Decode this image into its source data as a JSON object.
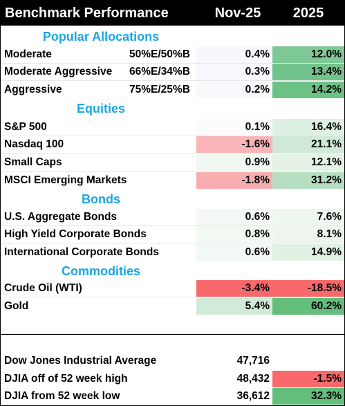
{
  "header": {
    "title": "Benchmark Performance",
    "col1": "Nov-25",
    "col2": "2025"
  },
  "sections": {
    "popular": "Popular Allocations",
    "equities": "Equities",
    "bonds": "Bonds",
    "commodities": "Commodities"
  },
  "rows": {
    "moderate": {
      "name": "Moderate",
      "alloc": "50%E/50%B",
      "nov": "0.4%",
      "ytd": "12.0%",
      "nov_bg": "#f7f8fc",
      "ytd_bg": "#7ec896"
    },
    "mod_agg": {
      "name": "Moderate Aggressive",
      "alloc": "66%E/34%B",
      "nov": "0.3%",
      "ytd": "13.4%",
      "nov_bg": "#f8f9fd",
      "ytd_bg": "#72c38b"
    },
    "aggressive": {
      "name": "Aggressive",
      "alloc": "75%E/25%B",
      "nov": "0.2%",
      "ytd": "14.2%",
      "nov_bg": "#f9f9fd",
      "ytd_bg": "#6cc185"
    },
    "sp500": {
      "name": "S&P 500",
      "nov": "0.1%",
      "ytd": "16.4%",
      "nov_bg": "#fbfbfe",
      "ytd_bg": "#def0e1"
    },
    "nasdaq": {
      "name": "Nasdaq 100",
      "nov": "-1.6%",
      "ytd": "21.1%",
      "nov_bg": "#f9b5b8",
      "ytd_bg": "#cfe9d6"
    },
    "smallcaps": {
      "name": "Small Caps",
      "nov": "0.9%",
      "ytd": "12.1%",
      "nov_bg": "#f1f7f1",
      "ytd_bg": "#e5f3e7"
    },
    "msci": {
      "name": "MSCI Emerging Markets",
      "nov": "-1.8%",
      "ytd": "31.2%",
      "nov_bg": "#f8aeb1",
      "ytd_bg": "#b6dec0"
    },
    "usagg": {
      "name": "U.S. Aggregate Bonds",
      "nov": "0.6%",
      "ytd": "7.6%",
      "nov_bg": "#f4f8f4",
      "ytd_bg": "#eef6ef"
    },
    "hy": {
      "name": "High Yield Corporate Bonds",
      "nov": "0.8%",
      "ytd": "8.1%",
      "nov_bg": "#f3f8f2",
      "ytd_bg": "#edf6ee"
    },
    "intl": {
      "name": "International Corporate Bonds",
      "nov": "0.6%",
      "ytd": "14.9%",
      "nov_bg": "#f4f8f4",
      "ytd_bg": "#e1f1e4"
    },
    "crude": {
      "name": "Crude Oil (WTI)",
      "nov": "-3.4%",
      "ytd": "-18.5%",
      "nov_bg": "#f8696b",
      "ytd_bg": "#f8696b"
    },
    "gold": {
      "name": "Gold",
      "nov": "5.4%",
      "ytd": "60.2%",
      "nov_bg": "#d2ebd8",
      "ytd_bg": "#63be7b"
    },
    "dow": {
      "name": "Dow Jones Industrial Average",
      "nov": "47,716",
      "ytd": "",
      "nov_bg": "#ffffff",
      "ytd_bg": "#ffffff"
    },
    "djia_high": {
      "name": "DJIA off of 52 week high",
      "nov": "48,432",
      "ytd": "-1.5%",
      "nov_bg": "#ffffff",
      "ytd_bg": "#f8696b"
    },
    "djia_low": {
      "name": "DJIA from 52 week low",
      "nov": "36,612",
      "ytd": "32.3%",
      "nov_bg": "#ffffff",
      "ytd_bg": "#63be7b"
    }
  }
}
